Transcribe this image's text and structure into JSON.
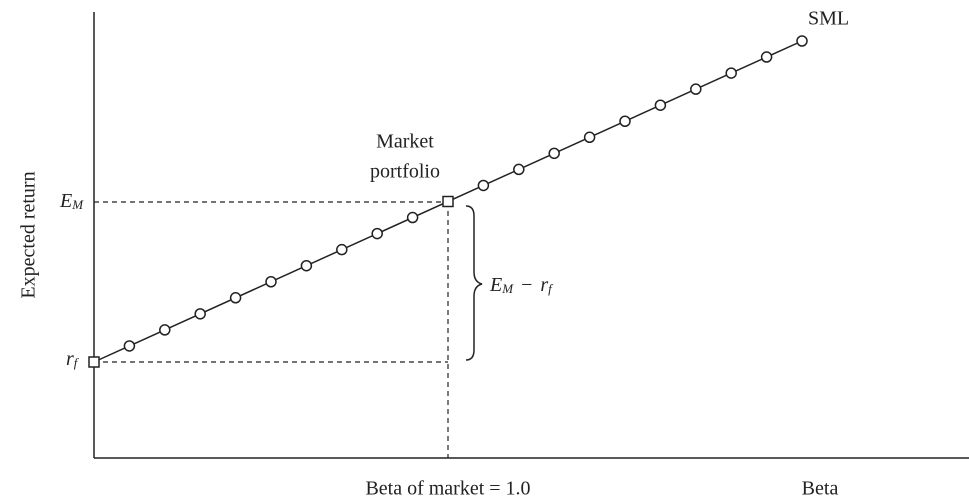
{
  "line_label": "SML",
  "market_portfolio": [
    "Market",
    "portfolio"
  ],
  "y_axis_title": "Expected return",
  "x_axis_label": "Beta of market = 1.0",
  "x_axis_title": "Beta",
  "em_label": {
    "base": "E",
    "sub": "M"
  },
  "rf_label": {
    "base": "r",
    "sub": "f"
  },
  "premium_label": {
    "base1": "E",
    "sub1": "M",
    "op": "−",
    "base2": "r",
    "sub2": "f"
  }
}
